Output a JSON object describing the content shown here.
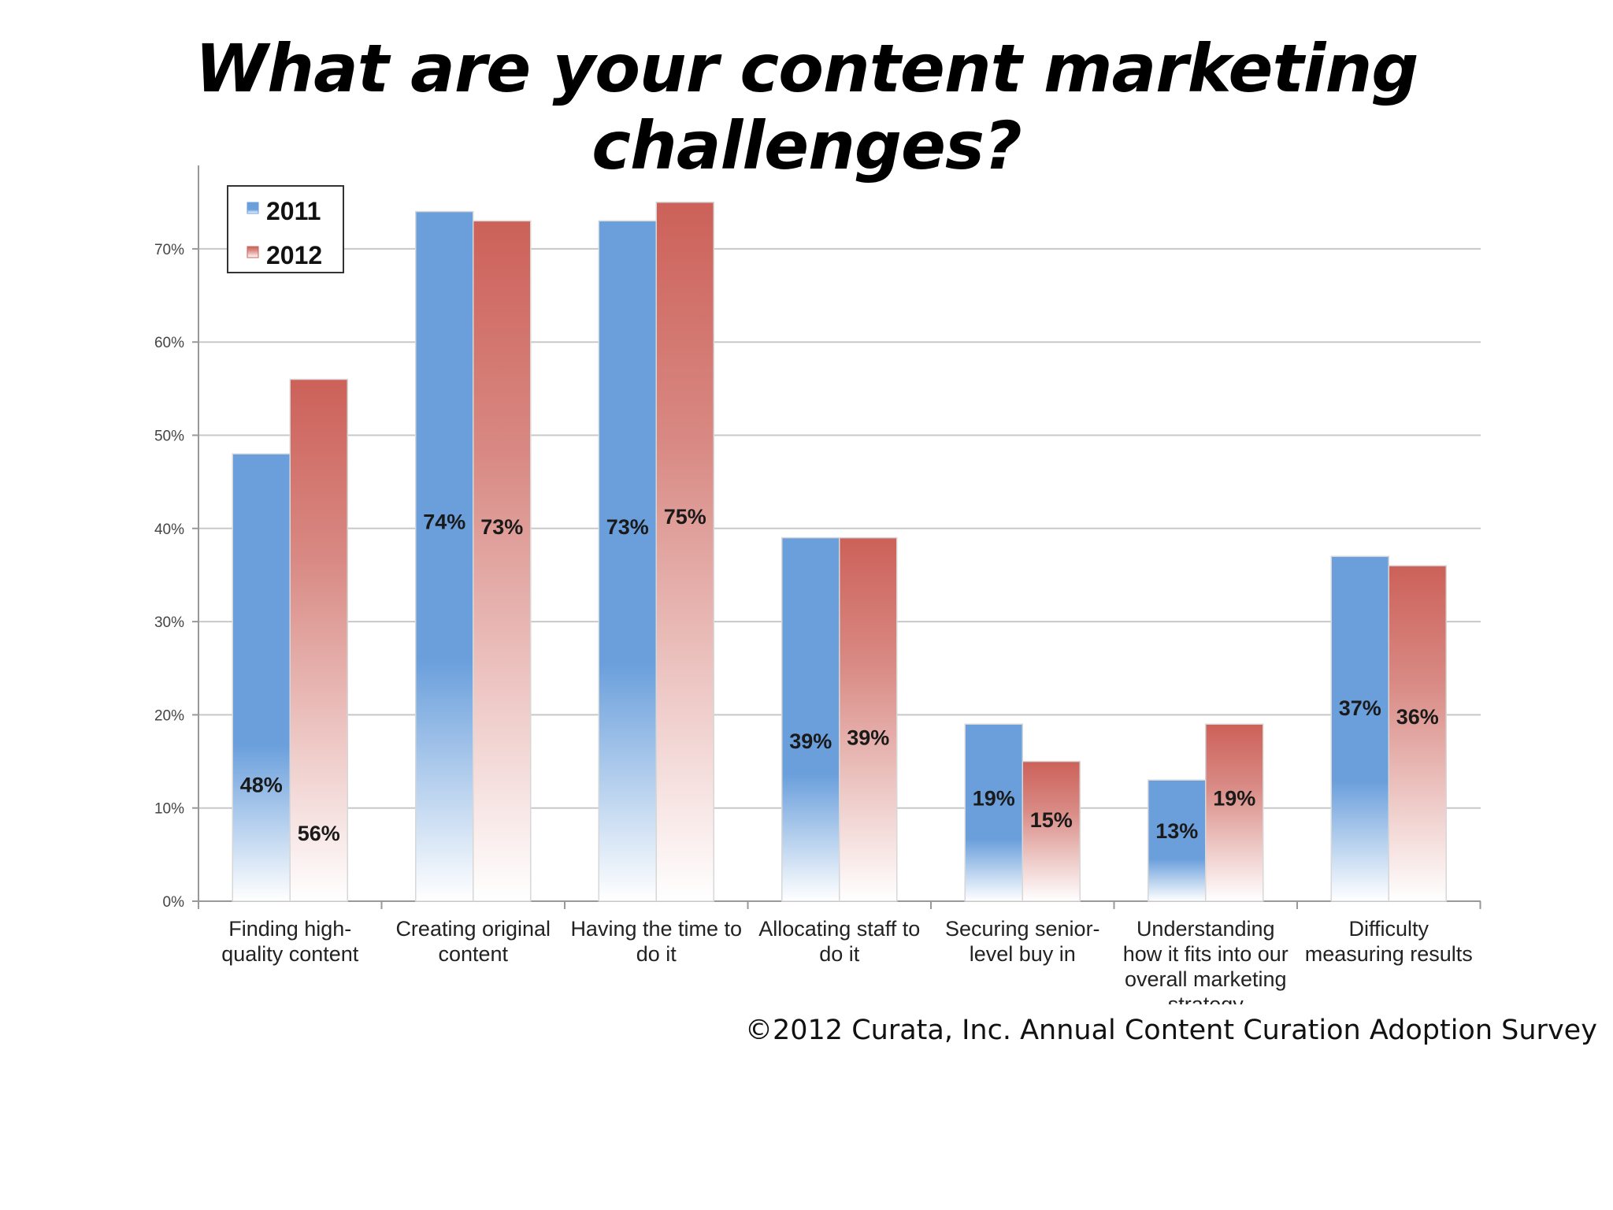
{
  "slide": {
    "title": "What are your content marketing challenges?",
    "source": "©2012 Curata, Inc. Annual Content Curation Adoption Survey"
  },
  "chart_data": {
    "type": "bar",
    "categories": [
      [
        "Finding high-",
        "quality content"
      ],
      [
        "Creating original",
        "content"
      ],
      [
        "Having the time to",
        "do it"
      ],
      [
        "Allocating staff to",
        "do it"
      ],
      [
        "Securing senior-",
        "level buy in"
      ],
      [
        "Understanding",
        "how it fits into our",
        "overall marketing",
        "strategy"
      ],
      [
        "Difficulty",
        "measuring results"
      ]
    ],
    "series": [
      {
        "name": "2011",
        "values": [
          48,
          74,
          73,
          39,
          19,
          13,
          37
        ],
        "labels": [
          "48%",
          "74%",
          "73%",
          "39%",
          "19%",
          "13%",
          "37%"
        ],
        "color": "#6a9fdc"
      },
      {
        "name": "2012",
        "values": [
          56,
          73,
          75,
          39,
          15,
          19,
          36
        ],
        "labels": [
          "56%",
          "73%",
          "75%",
          "39%",
          "15%",
          "19%",
          "36%"
        ],
        "color": "#cc6159"
      }
    ],
    "ylim": [
      0,
      80
    ],
    "yticks": [
      0,
      10,
      20,
      30,
      40,
      50,
      60,
      70
    ],
    "ytick_labels": [
      "0%",
      "10%",
      "20%",
      "30%",
      "40%",
      "50%",
      "60%",
      "70%"
    ],
    "grid": true,
    "legend_position": "top-left"
  }
}
